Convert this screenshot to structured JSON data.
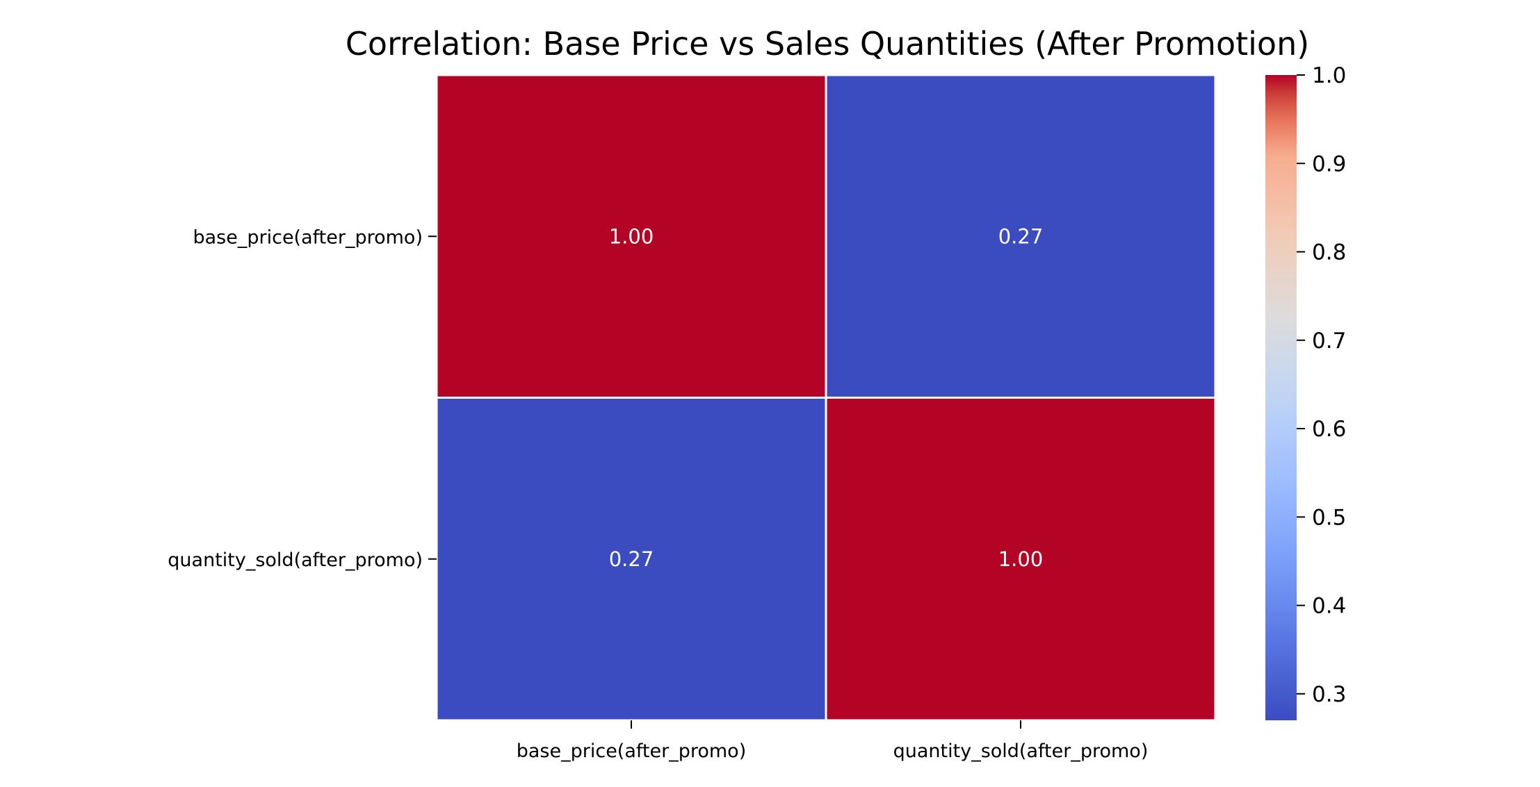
{
  "chart_data": {
    "type": "heatmap",
    "title": "Correlation: Base Price vs Sales Quantities (After Promotion)",
    "xlabel": "",
    "ylabel": "",
    "x_categories": [
      "base_price(after_promo)",
      "quantity_sold(after_promo)"
    ],
    "y_categories": [
      "base_price(after_promo)",
      "quantity_sold(after_promo)"
    ],
    "values": [
      [
        1.0,
        0.27
      ],
      [
        0.27,
        1.0
      ]
    ],
    "cell_labels": [
      [
        "1.00",
        "0.27"
      ],
      [
        "0.27",
        "1.00"
      ]
    ],
    "colormap": "coolwarm",
    "colors": {
      "low": "#3b4cc0",
      "mid": "#dddddd",
      "high": "#b40426",
      "annotation": "#ffffff",
      "cell_border": "#ffffff"
    },
    "colorbar": {
      "range": [
        0.27,
        1.0
      ],
      "ticks": [
        0.3,
        0.4,
        0.5,
        0.6,
        0.7,
        0.8,
        0.9,
        1.0
      ],
      "tick_labels": [
        "0.3",
        "0.4",
        "0.5",
        "0.6",
        "0.7",
        "0.8",
        "0.9",
        "1.0"
      ],
      "placement": "right"
    },
    "grid": false
  }
}
